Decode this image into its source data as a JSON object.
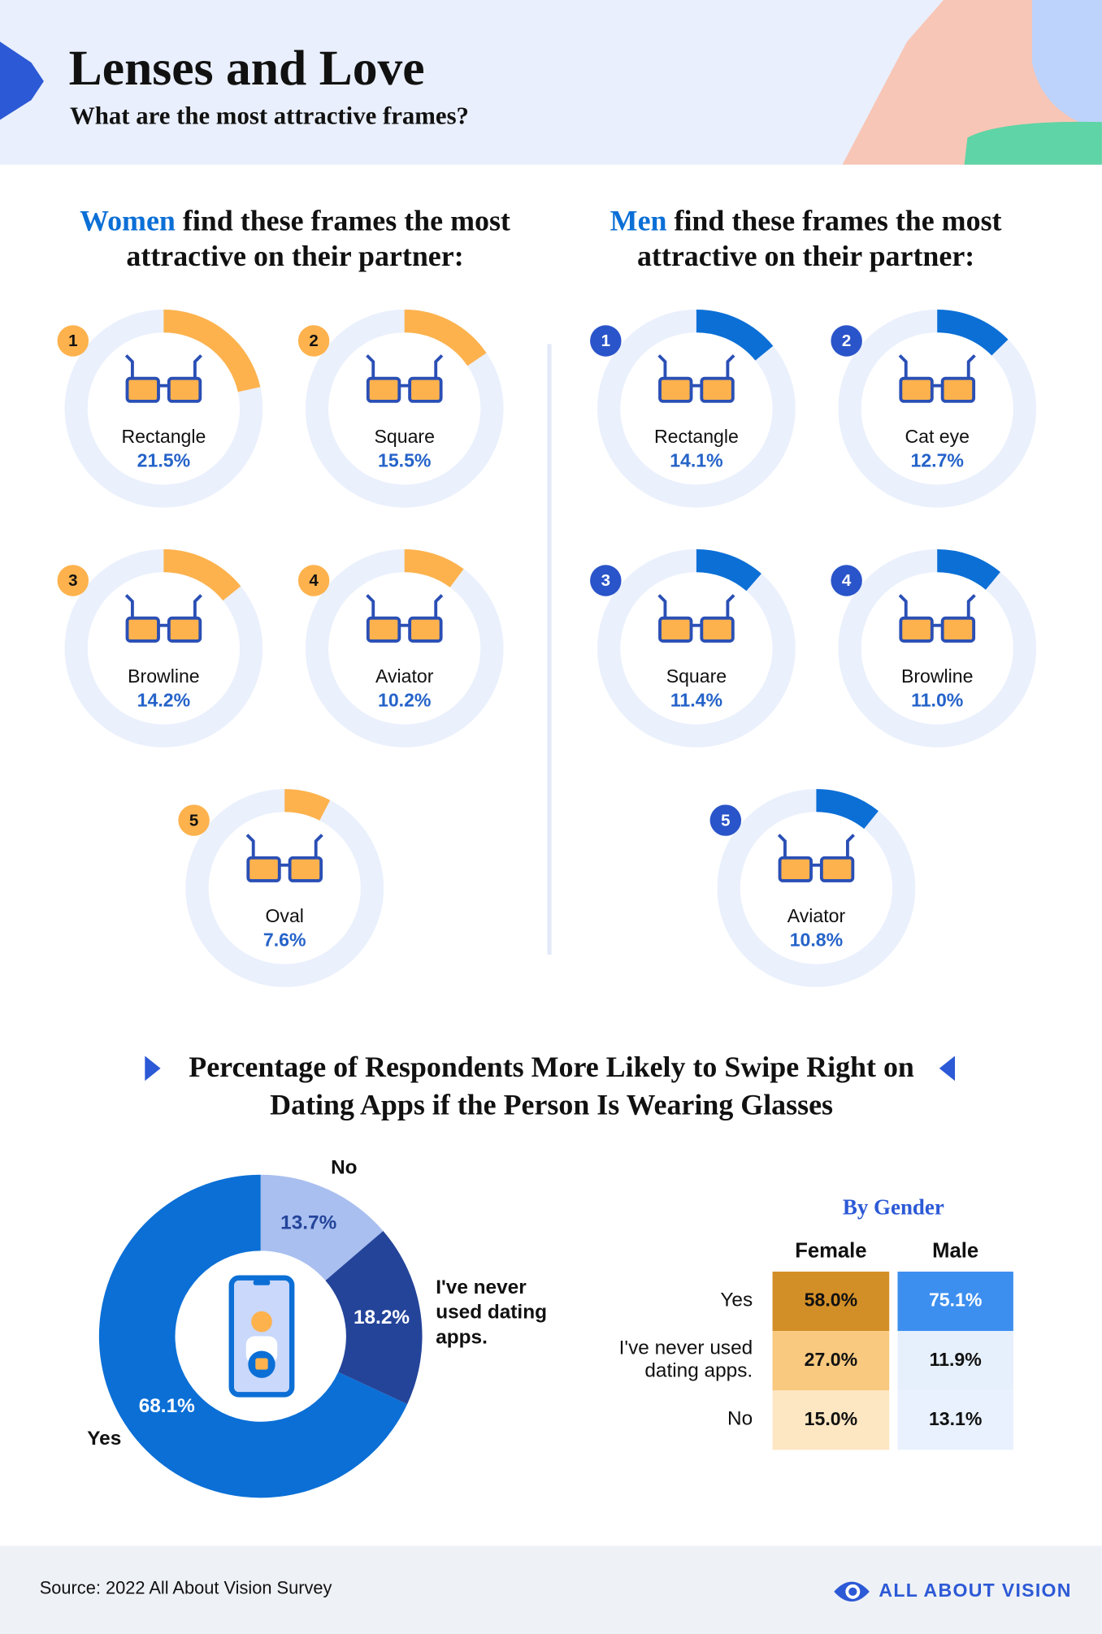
{
  "header": {
    "title": "Lenses and Love",
    "subtitle": "What are the most attractive frames?"
  },
  "chart_data": [
    {
      "type": "ring",
      "title_highlight": "Women",
      "title": "find these frames the most attractive on their partner:",
      "ranks": [
        1,
        2,
        3,
        4,
        5
      ],
      "categories": [
        "Rectangle",
        "Square",
        "Browline",
        "Aviator",
        "Oval"
      ],
      "values": [
        21.5,
        15.5,
        14.2,
        10.2,
        7.6
      ],
      "value_labels": [
        "21.5%",
        "15.5%",
        "14.2%",
        "10.2%",
        "7.6%"
      ],
      "color": "#fdb24d",
      "ylim": [
        0,
        100
      ]
    },
    {
      "type": "ring",
      "title_highlight": "Men",
      "title": "find these frames the most attractive on their partner:",
      "ranks": [
        1,
        2,
        3,
        4,
        5
      ],
      "categories": [
        "Rectangle",
        "Cat eye",
        "Square",
        "Browline",
        "Aviator"
      ],
      "values": [
        14.1,
        12.7,
        11.4,
        11.0,
        10.8
      ],
      "value_labels": [
        "14.1%",
        "12.7%",
        "11.4%",
        "11.0%",
        "10.8%"
      ],
      "color": "#0b6fd6",
      "ylim": [
        0,
        100
      ]
    },
    {
      "type": "donut",
      "title": "Percentage of Respondents More Likely to Swipe Right on Dating Apps if the Person Is Wearing Glasses",
      "categories": [
        "No",
        "I've never used dating apps.",
        "Yes"
      ],
      "values": [
        13.7,
        18.2,
        68.1
      ],
      "value_labels": [
        "13.7%",
        "18.2%",
        "68.1%"
      ],
      "colors": [
        "#a9bff0",
        "#24449a",
        "#0b6fd6"
      ]
    },
    {
      "type": "table",
      "title": "By Gender",
      "columns": [
        "Female",
        "Male"
      ],
      "rows": [
        "Yes",
        "I've never used dating apps.",
        "No"
      ],
      "values": [
        [
          58.0,
          75.1
        ],
        [
          27.0,
          11.9
        ],
        [
          15.0,
          13.1
        ]
      ],
      "value_labels": [
        [
          "58.0%",
          "75.1%"
        ],
        [
          "27.0%",
          "11.9%"
        ],
        [
          "15.0%",
          "13.1%"
        ]
      ]
    }
  ],
  "footer": {
    "source": "Source: 2022 All About Vision Survey",
    "brand": "ALL ABOUT VISION"
  }
}
